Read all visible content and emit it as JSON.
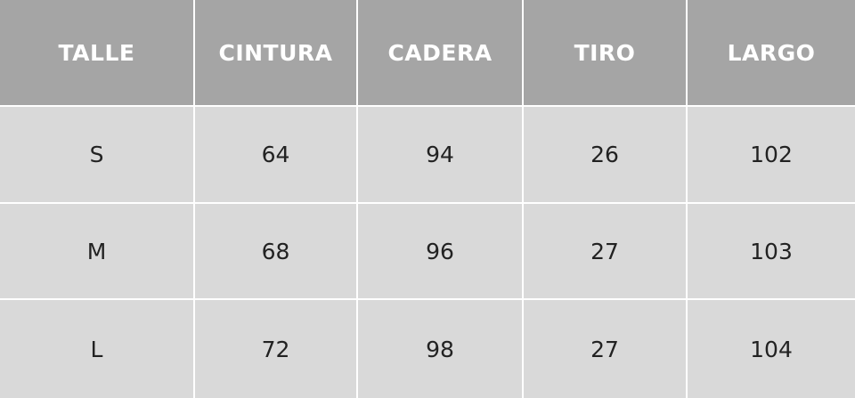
{
  "table": {
    "header": [
      "TALLE",
      "CINTURA",
      "CADERA",
      "TIRO",
      "LARGO"
    ],
    "rows": [
      [
        "S",
        64,
        94,
        26,
        102
      ],
      [
        "M",
        68,
        96,
        27,
        103
      ],
      [
        "L",
        72,
        98,
        27,
        104
      ]
    ]
  }
}
